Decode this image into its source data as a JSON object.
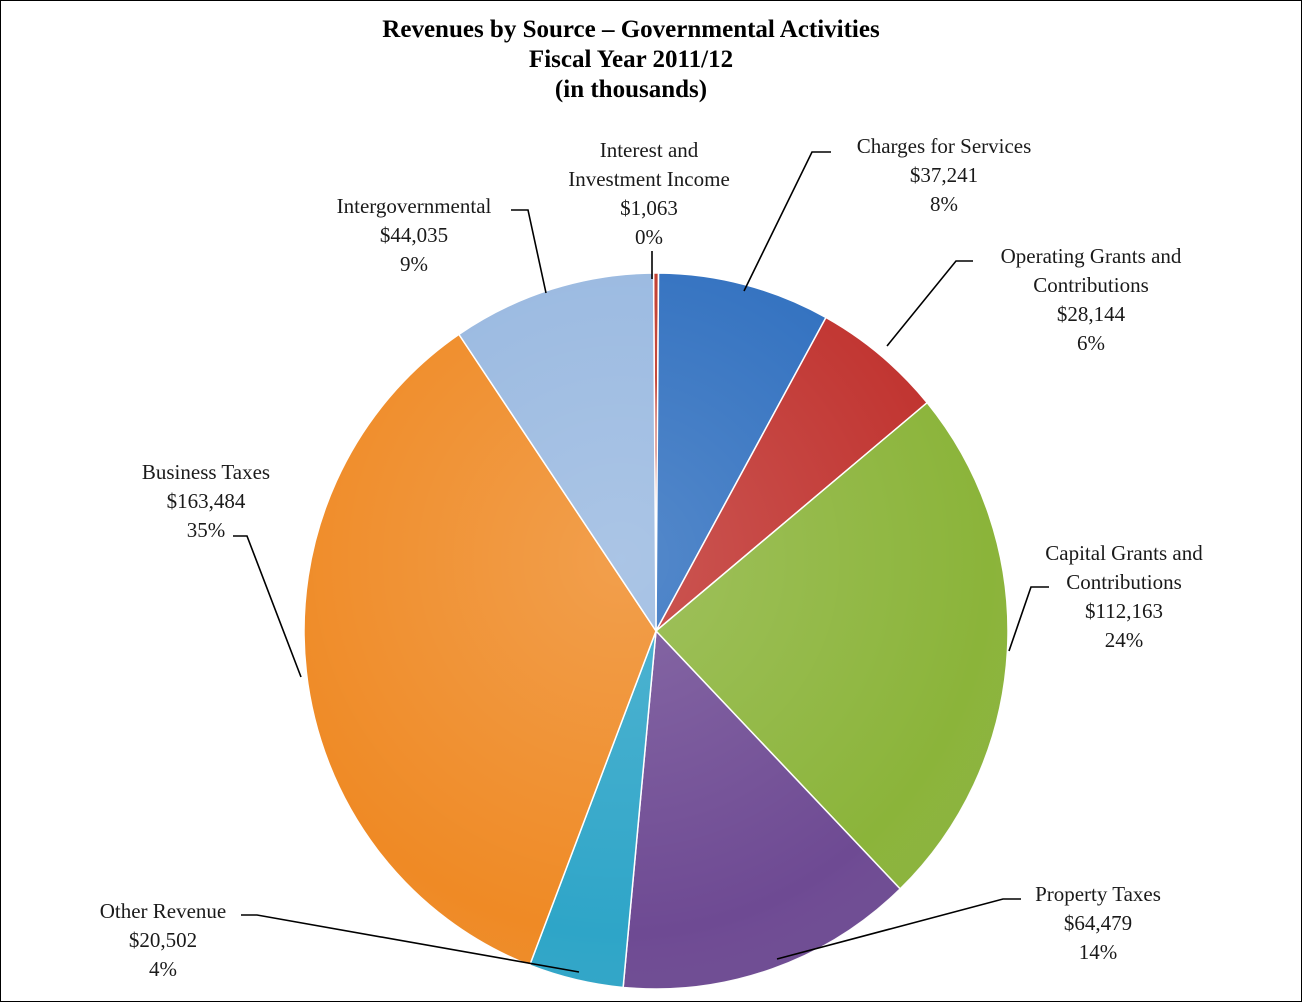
{
  "chart_data": {
    "type": "pie",
    "title": "Revenues by Source – Governmental Activities",
    "subtitle": "Fiscal Year 2011/12",
    "unit_note": "(in thousands)",
    "slices": [
      {
        "name": "Interest and Investment Income",
        "value": 1063,
        "value_label": "$1,063",
        "percent_label": "0%",
        "color": "#c0392b"
      },
      {
        "name": "Charges for Services",
        "value": 37241,
        "value_label": "$37,241",
        "percent_label": "8%",
        "color": "#2f6fbf"
      },
      {
        "name": "Operating Grants and Contributions",
        "value": 28144,
        "value_label": "$28,144",
        "percent_label": "6%",
        "color": "#c0322e"
      },
      {
        "name": "Capital Grants and Contributions",
        "value": 112163,
        "value_label": "$112,163",
        "percent_label": "24%",
        "color": "#8bb43a"
      },
      {
        "name": "Property Taxes",
        "value": 64479,
        "value_label": "$64,479",
        "percent_label": "14%",
        "color": "#6e4a93"
      },
      {
        "name": "Other Revenue",
        "value": 20502,
        "value_label": "$20,502",
        "percent_label": "4%",
        "color": "#2ea5c8"
      },
      {
        "name": "Business Taxes",
        "value": 163484,
        "value_label": "$163,484",
        "percent_label": "35%",
        "color": "#ef8a25"
      },
      {
        "name": "Intergovernmental",
        "value": 44035,
        "value_label": "$44,035",
        "percent_label": "9%",
        "color": "#98b8e0"
      }
    ]
  }
}
